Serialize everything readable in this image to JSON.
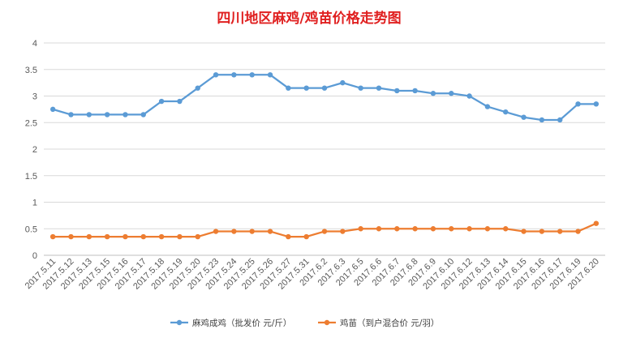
{
  "chart_data": {
    "type": "line",
    "title": "四川地区麻鸡/鸡苗价格走势图",
    "title_color": "#e02020",
    "categories": [
      "2017.5.11",
      "2017.5.12",
      "2017.5.13",
      "2017.5.15",
      "2017.5.16",
      "2017.5.17",
      "2017.5.18",
      "2017.5.19",
      "2017.5.20",
      "2017.5.23",
      "2017.5.24",
      "2017.5.25",
      "2017.5.26",
      "2017.5.27",
      "2017.5.31",
      "2017.6.2",
      "2017.6.3",
      "2017.6.5",
      "2017.6.6",
      "2017.6.7",
      "2017.6.8",
      "2017.6.9",
      "2017.6.10",
      "2017.6.12",
      "2017.6.13",
      "2017.6.14",
      "2017.6.15",
      "2017.6.16",
      "2017.6.17",
      "2017.6.19",
      "2017.6.20"
    ],
    "series": [
      {
        "name": "麻鸡成鸡（批发价 元/斤）",
        "color": "#5b9bd5",
        "values": [
          2.75,
          2.65,
          2.65,
          2.65,
          2.65,
          2.65,
          2.9,
          2.9,
          3.15,
          3.4,
          3.4,
          3.4,
          3.4,
          3.15,
          3.15,
          3.15,
          3.25,
          3.15,
          3.15,
          3.1,
          3.1,
          3.05,
          3.05,
          3.0,
          2.8,
          2.7,
          2.6,
          2.55,
          2.55,
          2.85,
          2.85
        ]
      },
      {
        "name": "鸡苗（到户混合价 元/羽）",
        "color": "#ed7d31",
        "values": [
          0.35,
          0.35,
          0.35,
          0.35,
          0.35,
          0.35,
          0.35,
          0.35,
          0.35,
          0.45,
          0.45,
          0.45,
          0.45,
          0.35,
          0.35,
          0.45,
          0.45,
          0.5,
          0.5,
          0.5,
          0.5,
          0.5,
          0.5,
          0.5,
          0.5,
          0.5,
          0.45,
          0.45,
          0.45,
          0.45,
          0.6
        ]
      }
    ],
    "ylim": [
      0,
      4
    ],
    "yticks": [
      "0",
      "0.5",
      "1",
      "1.5",
      "2",
      "2.5",
      "3",
      "3.5",
      "4"
    ],
    "grid": true,
    "legend_position": "bottom"
  }
}
